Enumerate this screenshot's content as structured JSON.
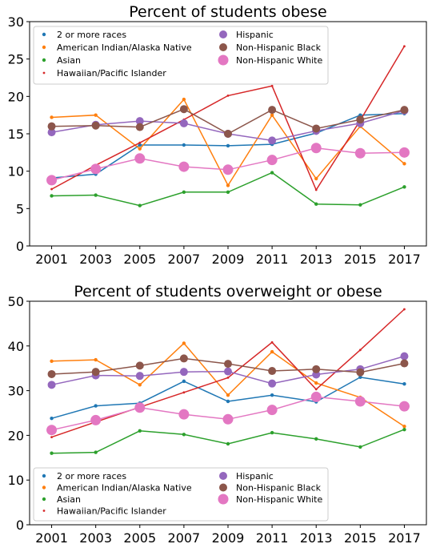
{
  "chart_data": [
    {
      "type": "line",
      "title": "Percent of students obese",
      "x": [
        2001,
        2003,
        2005,
        2007,
        2009,
        2011,
        2013,
        2015,
        2017
      ],
      "ylim": [
        0,
        30
      ],
      "yticks": [
        0,
        5,
        10,
        15,
        20,
        25,
        30
      ],
      "grid": false,
      "legend": "top-left",
      "series": [
        {
          "name": "2 or more races",
          "color": "#1f77b4",
          "marker": "small",
          "values": [
            9.1,
            9.6,
            13.5,
            13.5,
            13.4,
            13.6,
            15.1,
            17.5,
            17.7
          ]
        },
        {
          "name": "American Indian/Alaska Native",
          "color": "#ff7f0e",
          "marker": "small",
          "values": [
            17.2,
            17.5,
            13.0,
            19.6,
            8.1,
            17.5,
            9.0,
            16.0,
            11.0
          ]
        },
        {
          "name": "Asian",
          "color": "#2ca02c",
          "marker": "small",
          "values": [
            6.7,
            6.8,
            5.4,
            7.2,
            7.2,
            9.8,
            5.6,
            5.5,
            7.9
          ]
        },
        {
          "name": "Hawaiian/Pacific Islander",
          "color": "#d62728",
          "marker": "tiny",
          "values": [
            7.6,
            10.8,
            13.8,
            16.9,
            20.1,
            21.4,
            7.5,
            16.8,
            26.7
          ]
        },
        {
          "name": "Hispanic",
          "color": "#9467bd",
          "marker": "large",
          "values": [
            15.2,
            16.2,
            16.7,
            16.4,
            15.0,
            14.1,
            15.4,
            16.4,
            18.1
          ]
        },
        {
          "name": "Non-Hispanic Black",
          "color": "#8c564b",
          "marker": "large",
          "values": [
            16.0,
            16.1,
            15.9,
            18.3,
            15.0,
            18.2,
            15.7,
            16.9,
            18.2
          ]
        },
        {
          "name": "Non-Hispanic White",
          "color": "#e377c2",
          "marker": "xlarge",
          "values": [
            8.8,
            10.3,
            11.7,
            10.6,
            10.2,
            11.5,
            13.1,
            12.4,
            12.5
          ]
        }
      ]
    },
    {
      "type": "line",
      "title": "Percent of students overweight or obese",
      "x": [
        2001,
        2003,
        2005,
        2007,
        2009,
        2011,
        2013,
        2015,
        2017
      ],
      "ylim": [
        0,
        50
      ],
      "yticks": [
        0,
        10,
        20,
        30,
        40,
        50
      ],
      "grid": false,
      "legend": "bottom-left",
      "series": [
        {
          "name": "2 or more races",
          "color": "#1f77b4",
          "marker": "small",
          "values": [
            23.8,
            26.6,
            27.2,
            32.1,
            27.6,
            29.0,
            27.5,
            33.0,
            31.5
          ]
        },
        {
          "name": "American Indian/Alaska Native",
          "color": "#ff7f0e",
          "marker": "small",
          "values": [
            36.6,
            36.9,
            31.3,
            40.6,
            29.0,
            38.7,
            31.7,
            28.5,
            22.0
          ]
        },
        {
          "name": "Asian",
          "color": "#2ca02c",
          "marker": "small",
          "values": [
            16.0,
            16.2,
            21.0,
            20.2,
            18.1,
            20.6,
            19.2,
            17.4,
            21.3
          ]
        },
        {
          "name": "Hawaiian/Pacific Islander",
          "color": "#d62728",
          "marker": "tiny",
          "values": [
            19.6,
            23.0,
            26.3,
            29.6,
            32.9,
            40.8,
            30.3,
            39.1,
            48.2
          ]
        },
        {
          "name": "Hispanic",
          "color": "#9467bd",
          "marker": "large",
          "values": [
            31.3,
            33.4,
            33.3,
            34.2,
            34.3,
            31.6,
            33.6,
            34.8,
            37.7
          ]
        },
        {
          "name": "Non-Hispanic Black",
          "color": "#8c564b",
          "marker": "large",
          "values": [
            33.7,
            34.2,
            35.6,
            37.2,
            36.0,
            34.4,
            34.8,
            34.1,
            36.1
          ]
        },
        {
          "name": "Non-Hispanic White",
          "color": "#e377c2",
          "marker": "xlarge",
          "values": [
            21.2,
            23.4,
            26.2,
            24.7,
            23.6,
            25.7,
            28.6,
            27.6,
            26.5
          ]
        }
      ]
    }
  ]
}
